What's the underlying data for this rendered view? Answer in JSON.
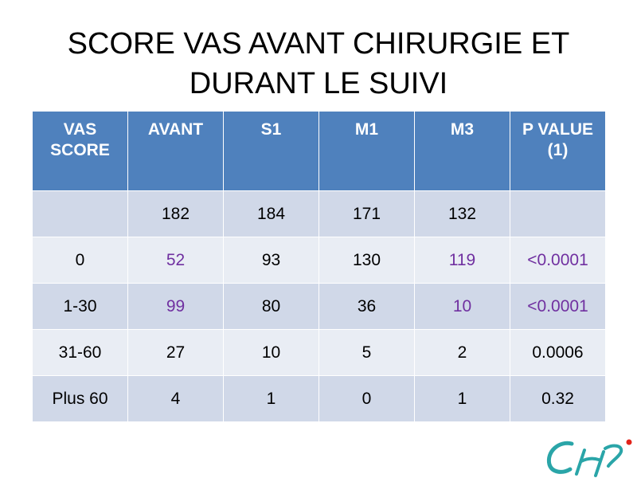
{
  "title": {
    "line1": "SCORE VAS AVANT CHIRURGIE ET",
    "line2": "DURANT LE SUIVI"
  },
  "table": {
    "headers": [
      "VAS SCORE",
      "AVANT",
      "S1",
      "M1",
      "M3",
      "P VALUE (1)"
    ],
    "rows": [
      [
        "",
        "182",
        "184",
        "171",
        "132",
        ""
      ],
      [
        "0",
        "52",
        "93",
        "130",
        "119",
        "<0.0001"
      ],
      [
        "1-30",
        "99",
        "80",
        "36",
        "10",
        "<0.0001"
      ],
      [
        "31-60",
        "27",
        "10",
        "5",
        "2",
        "0.0006"
      ],
      [
        "Plus 60",
        "4",
        "1",
        "0",
        "1",
        "0.32"
      ]
    ]
  },
  "colors": {
    "header_bg": "#4f81bd",
    "band_dark": "#d0d8e8",
    "band_light": "#e9edf4",
    "highlight": "#7030a0",
    "logo_teal": "#2aa5a8",
    "logo_red": "#e2231a"
  },
  "logo": {
    "icon": "chu-logo-icon"
  }
}
